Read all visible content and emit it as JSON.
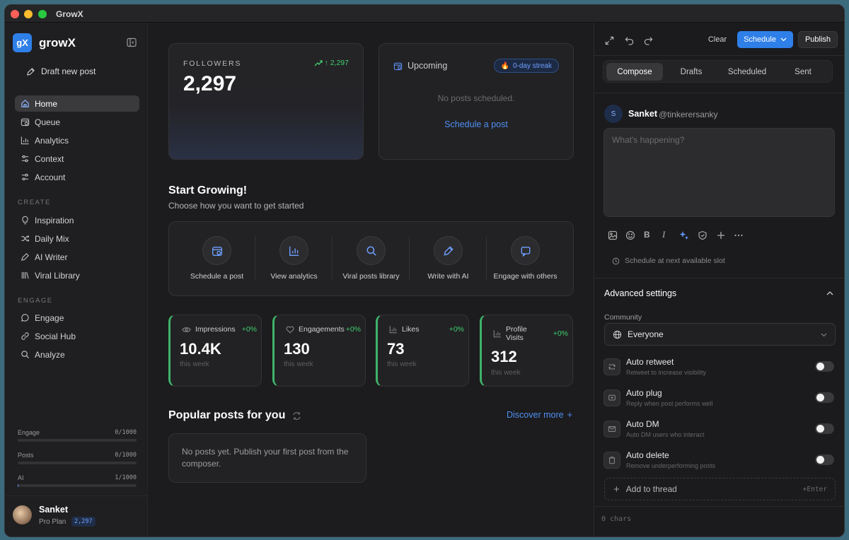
{
  "window": {
    "title": "GrowX"
  },
  "sidebar": {
    "brand_initials": "gX",
    "brand": "growX",
    "draft_label": "Draft new post",
    "nav": [
      {
        "label": "Home",
        "icon": "home-icon"
      },
      {
        "label": "Queue",
        "icon": "calendar-icon"
      },
      {
        "label": "Analytics",
        "icon": "analytics-icon"
      },
      {
        "label": "Context",
        "icon": "sliders-icon"
      },
      {
        "label": "Account",
        "icon": "sliders-icon"
      }
    ],
    "create_heading": "CREATE",
    "create": [
      {
        "label": "Inspiration",
        "icon": "lightbulb-icon"
      },
      {
        "label": "Daily Mix",
        "icon": "shuffle-icon"
      },
      {
        "label": "AI Writer",
        "icon": "pen-icon"
      },
      {
        "label": "Viral Library",
        "icon": "library-icon"
      }
    ],
    "engage_heading": "ENGAGE",
    "engage": [
      {
        "label": "Engage",
        "icon": "chat-icon"
      },
      {
        "label": "Social Hub",
        "icon": "link-icon"
      },
      {
        "label": "Analyze",
        "icon": "search-icon"
      }
    ],
    "usage": [
      {
        "label": "Engage",
        "value": "0/1000",
        "fraction": 0
      },
      {
        "label": "Posts",
        "value": "0/1000",
        "fraction": 0
      },
      {
        "label": "AI",
        "value": "1/1000",
        "fraction": 0.001
      }
    ],
    "profile": {
      "name": "Sanket",
      "plan": "Pro Plan",
      "badge": "2,297"
    }
  },
  "main": {
    "followers": {
      "label": "FOLLOWERS",
      "value": "2,297",
      "delta": "↑ 2,297"
    },
    "upcoming": {
      "title": "Upcoming",
      "streak": "0-day streak",
      "empty": "No posts scheduled.",
      "link": "Schedule a post"
    },
    "start": {
      "title": "Start Growing!",
      "subtitle": "Choose how you want to get started"
    },
    "actions": [
      {
        "label": "Schedule a post",
        "icon": "calendar-icon"
      },
      {
        "label": "View analytics",
        "icon": "analytics-icon"
      },
      {
        "label": "Viral posts library",
        "icon": "search-icon"
      },
      {
        "label": "Write with AI",
        "icon": "pen-icon"
      },
      {
        "label": "Engage with others",
        "icon": "chat-icon"
      }
    ],
    "stats": [
      {
        "name": "Impressions",
        "pct": "+0%",
        "value": "10.4K",
        "period": "this week",
        "icon": "eye-icon"
      },
      {
        "name": "Engagements",
        "pct": "+0%",
        "value": "130",
        "period": "this week",
        "icon": "heart-icon"
      },
      {
        "name": "Likes",
        "pct": "+0%",
        "value": "73",
        "period": "this week",
        "icon": "bar-chart-icon"
      },
      {
        "name": "Profile Visits",
        "pct": "+0%",
        "value": "312",
        "period": "this week",
        "icon": "bar-chart-icon"
      }
    ],
    "popular": {
      "title": "Popular posts for you",
      "discover": "Discover more",
      "empty": "No posts yet. Publish your first post from the composer."
    }
  },
  "composer": {
    "clear": "Clear",
    "schedule": "Schedule",
    "publish": "Publish",
    "tabs": [
      "Compose",
      "Drafts",
      "Scheduled",
      "Sent"
    ],
    "user": {
      "initial": "S",
      "name": "Sanket",
      "handle": "@tinkerersanky"
    },
    "placeholder": "What's happening?",
    "slot": "Schedule at next available slot",
    "advanced": "Advanced settings",
    "community_label": "Community",
    "community_value": "Everyone",
    "options": [
      {
        "title": "Auto retweet",
        "desc": "Retweet to increase visibility",
        "on": false
      },
      {
        "title": "Auto plug",
        "desc": "Reply when post performs well",
        "on": false
      },
      {
        "title": "Auto DM",
        "desc": "Auto DM users who interact",
        "on": false
      },
      {
        "title": "Auto delete",
        "desc": "Remove underperforming posts",
        "on": false
      }
    ],
    "add_thread": "Add to thread",
    "shortcut": "+Enter",
    "chars": "0 chars"
  },
  "colors": {
    "accent": "#2f7fe8",
    "positive": "#3fcf6e",
    "link": "#4f8ff2"
  }
}
